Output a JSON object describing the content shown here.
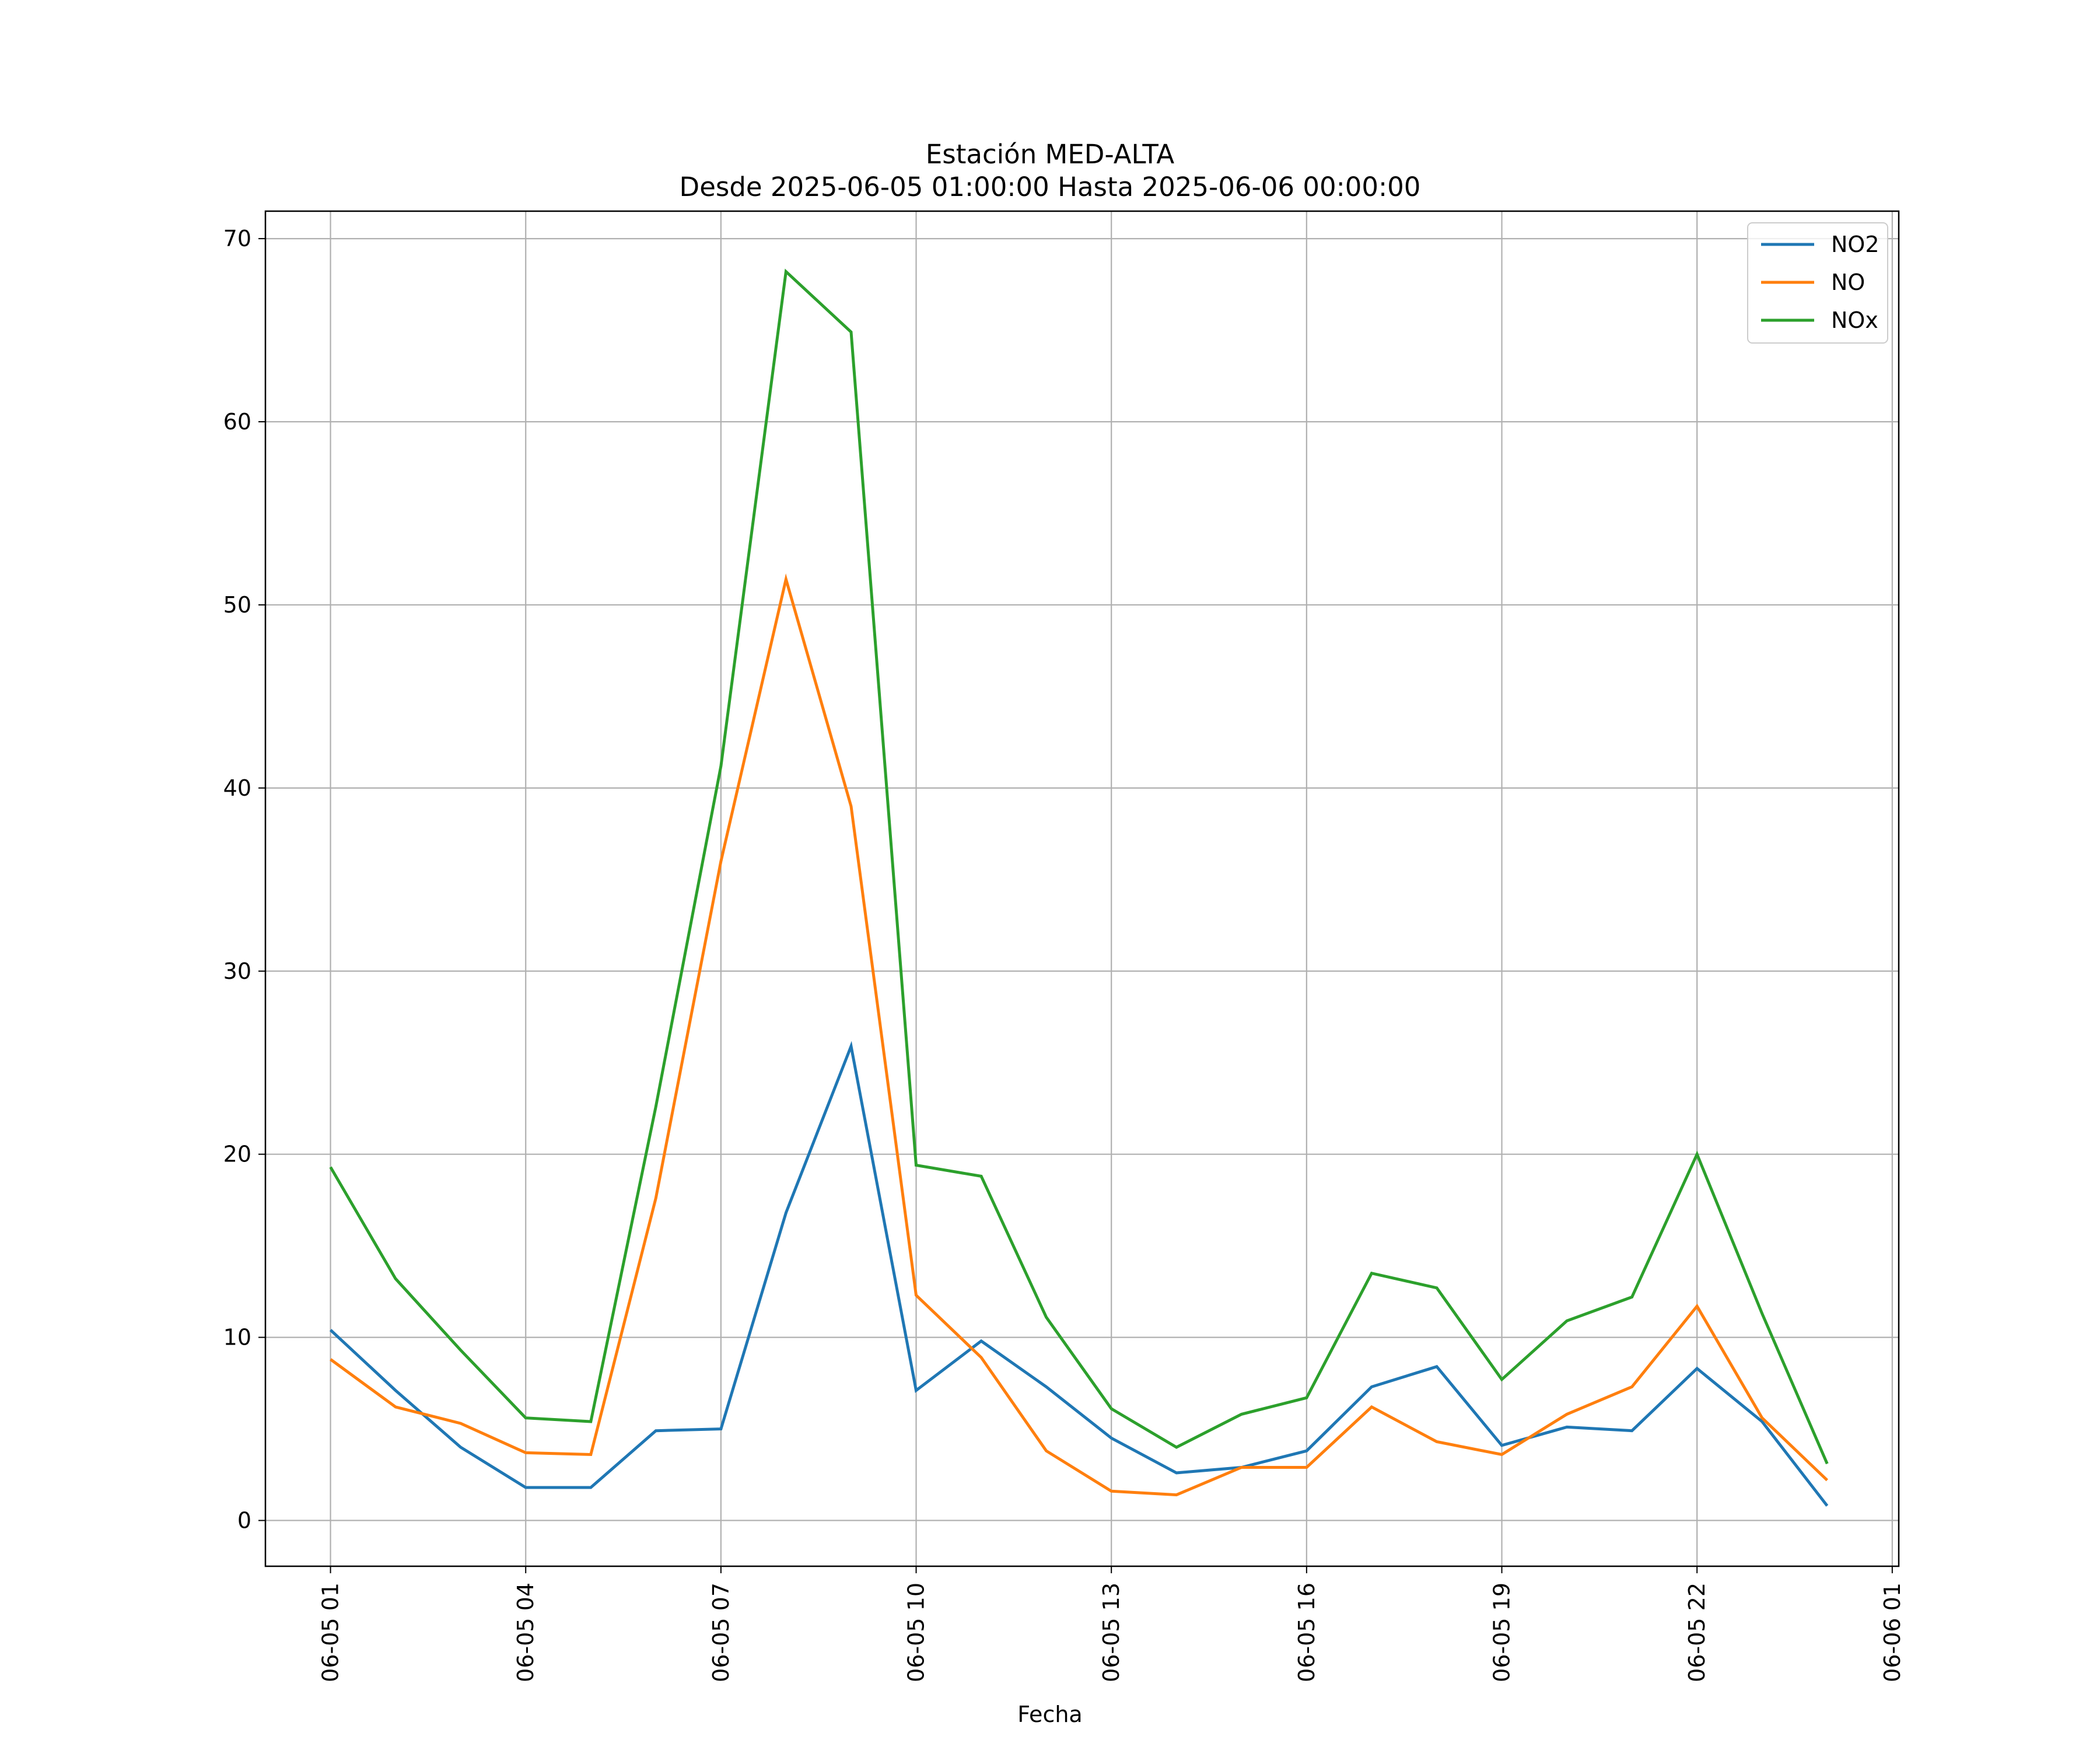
{
  "chart_data": {
    "type": "line",
    "title": "Estación MED-ALTA",
    "subtitle": "Desde 2025-06-05 01:00:00 Hasta 2025-06-06 00:00:00",
    "xlabel": "Fecha",
    "ylabel": "",
    "x": [
      "2025-06-05 01:00",
      "2025-06-05 02:00",
      "2025-06-05 03:00",
      "2025-06-05 04:00",
      "2025-06-05 05:00",
      "2025-06-05 06:00",
      "2025-06-05 07:00",
      "2025-06-05 08:00",
      "2025-06-05 09:00",
      "2025-06-05 10:00",
      "2025-06-05 11:00",
      "2025-06-05 12:00",
      "2025-06-05 13:00",
      "2025-06-05 14:00",
      "2025-06-05 15:00",
      "2025-06-05 16:00",
      "2025-06-05 17:00",
      "2025-06-05 18:00",
      "2025-06-05 19:00",
      "2025-06-05 20:00",
      "2025-06-05 21:00",
      "2025-06-05 22:00",
      "2025-06-05 23:00",
      "2025-06-06 00:00"
    ],
    "x_ticks": [
      "06-05 01",
      "06-05 04",
      "06-05 07",
      "06-05 10",
      "06-05 13",
      "06-05 16",
      "06-05 19",
      "06-05 22",
      "06-06 01"
    ],
    "y_ticks": [
      0,
      10,
      20,
      30,
      40,
      50,
      60,
      70
    ],
    "ylim": [
      -2.5,
      71.5
    ],
    "xlim": [
      "2025-06-05 00:00",
      "2025-06-06 01:06"
    ],
    "grid": true,
    "legend_position": "upper right",
    "series": [
      {
        "name": "NO2",
        "color": "#1f77b4",
        "values": [
          10.4,
          7.1,
          4.0,
          1.8,
          1.8,
          4.9,
          5.0,
          16.8,
          25.9,
          7.1,
          9.8,
          7.3,
          4.5,
          2.6,
          2.9,
          3.8,
          7.3,
          8.4,
          4.1,
          5.1,
          4.9,
          8.3,
          5.4,
          0.8
        ]
      },
      {
        "name": "NO",
        "color": "#ff7f0e",
        "values": [
          8.8,
          6.2,
          5.3,
          3.7,
          3.6,
          17.6,
          36.0,
          51.4,
          39.0,
          12.3,
          8.9,
          3.8,
          1.6,
          1.4,
          2.9,
          2.9,
          6.2,
          4.3,
          3.6,
          5.8,
          7.3,
          11.7,
          5.6,
          2.2
        ]
      },
      {
        "name": "NOx",
        "color": "#2ca02c",
        "values": [
          19.3,
          13.2,
          9.3,
          5.6,
          5.4,
          22.6,
          41.2,
          68.2,
          64.9,
          19.4,
          18.8,
          11.1,
          6.1,
          4.0,
          5.8,
          6.7,
          13.5,
          12.7,
          7.7,
          10.9,
          12.2,
          20.0,
          11.3,
          3.1
        ]
      }
    ]
  }
}
